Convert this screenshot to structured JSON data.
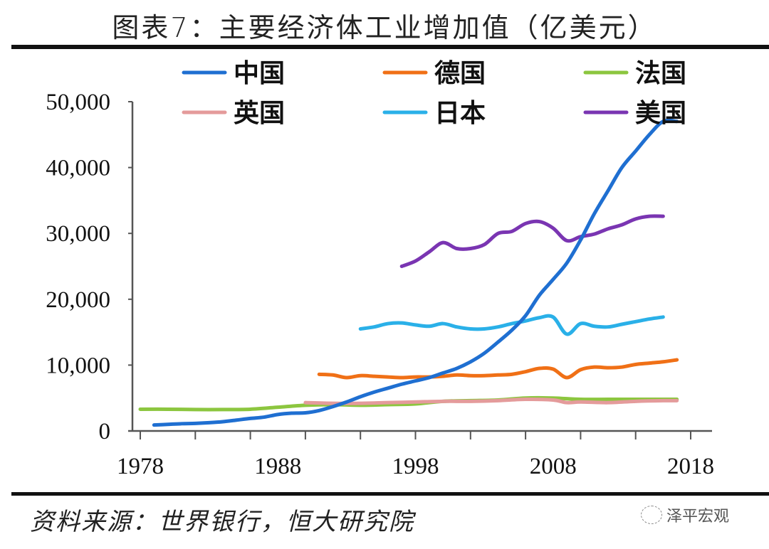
{
  "header": {
    "title": "图表7：主要经济体工业增加值（亿美元）"
  },
  "footer": {
    "source": "资料来源：世界银行，恒大研究院",
    "watermark": "泽平宏观"
  },
  "chart_data": {
    "type": "line",
    "title": "图表7：主要经济体工业增加值（亿美元）",
    "xlabel": "",
    "ylabel": "",
    "xlim": [
      1978,
      2018
    ],
    "ylim": [
      0,
      50000
    ],
    "x_ticks": [
      1978,
      1982,
      1986,
      1990,
      1994,
      1998,
      2002,
      2006,
      2010,
      2014,
      2018
    ],
    "x_tick_labels": [
      "1978",
      "1988",
      "1998",
      "2008",
      "2018"
    ],
    "x_tick_label_values": [
      1978,
      1988,
      1998,
      2008,
      2018
    ],
    "y_ticks": [
      0,
      10000,
      20000,
      30000,
      40000,
      50000
    ],
    "y_tick_labels": [
      "0",
      "10,000",
      "20,000",
      "30,000",
      "40,000",
      "50,000"
    ],
    "grid": false,
    "legend_position": "top",
    "series": [
      {
        "name": "中国",
        "color": "#1f6fd1",
        "x": [
          1979,
          1980,
          1981,
          1982,
          1983,
          1984,
          1985,
          1986,
          1987,
          1988,
          1989,
          1990,
          1991,
          1992,
          1993,
          1994,
          1995,
          1996,
          1997,
          1998,
          1999,
          2000,
          2001,
          2002,
          2003,
          2004,
          2005,
          2006,
          2007,
          2008,
          2009,
          2010,
          2011,
          2012,
          2013,
          2014,
          2015,
          2016,
          2017
        ],
        "y": [
          900,
          1000,
          1100,
          1150,
          1250,
          1400,
          1650,
          1900,
          2100,
          2500,
          2700,
          2750,
          3100,
          3700,
          4400,
          5200,
          5900,
          6500,
          7100,
          7600,
          8100,
          8800,
          9500,
          10500,
          11800,
          13500,
          15300,
          17500,
          20600,
          23000,
          25500,
          29000,
          33000,
          36500,
          40000,
          42500,
          45000,
          47000,
          47000
        ]
      },
      {
        "name": "德国",
        "color": "#f07016",
        "x": [
          1991,
          1992,
          1993,
          1994,
          1995,
          1996,
          1997,
          1998,
          1999,
          2000,
          2001,
          2002,
          2003,
          2004,
          2005,
          2006,
          2007,
          2008,
          2009,
          2010,
          2011,
          2012,
          2013,
          2014,
          2015,
          2016,
          2017
        ],
        "y": [
          8600,
          8500,
          8100,
          8400,
          8300,
          8200,
          8100,
          8200,
          8200,
          8300,
          8500,
          8400,
          8400,
          8500,
          8600,
          9000,
          9500,
          9400,
          8100,
          9300,
          9700,
          9600,
          9700,
          10100,
          10300,
          10500,
          10800
        ]
      },
      {
        "name": "法国",
        "color": "#8cc63f",
        "x": [
          1978,
          1980,
          1982,
          1984,
          1986,
          1988,
          1990,
          1992,
          1994,
          1996,
          1998,
          2000,
          2002,
          2004,
          2006,
          2008,
          2010,
          2012,
          2014,
          2016,
          2017
        ],
        "y": [
          3300,
          3300,
          3250,
          3250,
          3300,
          3600,
          3900,
          4000,
          3900,
          4000,
          4100,
          4500,
          4600,
          4700,
          5000,
          5000,
          4800,
          4800,
          4800,
          4800,
          4800
        ]
      },
      {
        "name": "英国",
        "color": "#e49b9b",
        "x": [
          1990,
          1992,
          1994,
          1996,
          1998,
          2000,
          2002,
          2004,
          2006,
          2008,
          2009,
          2010,
          2012,
          2014,
          2016,
          2017
        ],
        "y": [
          4300,
          4200,
          4200,
          4300,
          4400,
          4500,
          4500,
          4600,
          4800,
          4700,
          4300,
          4400,
          4300,
          4500,
          4600,
          4600
        ]
      },
      {
        "name": "日本",
        "color": "#2ab0e8",
        "x": [
          1994,
          1995,
          1996,
          1997,
          1998,
          1999,
          2000,
          2001,
          2002,
          2003,
          2004,
          2005,
          2006,
          2007,
          2008,
          2009,
          2010,
          2011,
          2012,
          2013,
          2014,
          2015,
          2016
        ],
        "y": [
          15500,
          15800,
          16300,
          16400,
          16100,
          15900,
          16300,
          15800,
          15500,
          15500,
          15800,
          16300,
          16700,
          17200,
          17300,
          14700,
          16300,
          15900,
          15800,
          16200,
          16600,
          17000,
          17300
        ]
      },
      {
        "name": "美国",
        "color": "#7a35b2",
        "x": [
          1997,
          1998,
          1999,
          2000,
          2001,
          2002,
          2003,
          2004,
          2005,
          2006,
          2007,
          2008,
          2009,
          2010,
          2011,
          2012,
          2013,
          2014,
          2015,
          2016
        ],
        "y": [
          25000,
          25800,
          27200,
          28600,
          27700,
          27700,
          28300,
          30000,
          30300,
          31500,
          31800,
          30800,
          28900,
          29500,
          29900,
          30700,
          31300,
          32200,
          32600,
          32600
        ]
      }
    ]
  }
}
